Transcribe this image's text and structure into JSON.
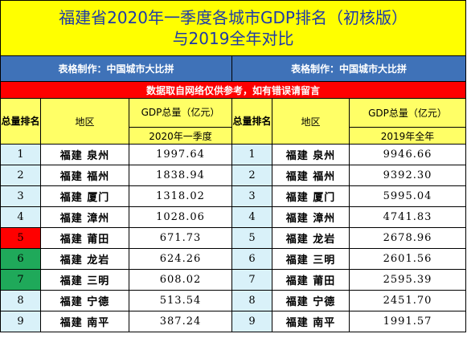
{
  "title": {
    "line1": "福建省2020年一季度各城市GDP排名（初核版）",
    "line2": "与2019全年对比"
  },
  "maker": {
    "left": "表格制作：中国城市大比拼",
    "right": "表格制作：中国城市大比拼"
  },
  "note": "数据取自网络仅供参考，如有错误请留言",
  "headers": {
    "rank": "总量排名",
    "region": "地区",
    "gdp_total": "GDP总量（亿元）",
    "gdp_total_right": "GDP总量（亿元）",
    "period_left": "2020年一季度",
    "period_right": "2019年全年"
  },
  "colors": {
    "title_bg": "#ffff00",
    "title_text": "#1e3aa8",
    "maker_bg": "#3f72b8",
    "note_bg": "#ff0000",
    "header_bg": "#ffff66",
    "rank_bg": "#d9f1f9",
    "rank_highlight_red": "#ff0000",
    "rank_highlight_green": "#1fa95a"
  },
  "rows": [
    {
      "rank": "1",
      "left_region": "福建 泉州",
      "left_value": "1997.64",
      "right_rank": "1",
      "right_region": "福建 泉州",
      "right_value": "9946.66",
      "rank_color": "normal"
    },
    {
      "rank": "2",
      "left_region": "福建 福州",
      "left_value": "1838.94",
      "right_rank": "2",
      "right_region": "福建 福州",
      "right_value": "9392.30",
      "rank_color": "normal"
    },
    {
      "rank": "3",
      "left_region": "福建 厦门",
      "left_value": "1318.02",
      "right_rank": "3",
      "right_region": "福建 厦门",
      "right_value": "5995.04",
      "rank_color": "normal"
    },
    {
      "rank": "4",
      "left_region": "福建 漳州",
      "left_value": "1028.06",
      "right_rank": "4",
      "right_region": "福建 漳州",
      "right_value": "4741.83",
      "rank_color": "normal"
    },
    {
      "rank": "5",
      "left_region": "福建 莆田",
      "left_value": "671.73",
      "right_rank": "5",
      "right_region": "福建 龙岩",
      "right_value": "2678.96",
      "rank_color": "red"
    },
    {
      "rank": "6",
      "left_region": "福建 龙岩",
      "left_value": "624.26",
      "right_rank": "6",
      "right_region": "福建 三明",
      "right_value": "2601.56",
      "rank_color": "green"
    },
    {
      "rank": "7",
      "left_region": "福建 三明",
      "left_value": "608.02",
      "right_rank": "7",
      "right_region": "福建 莆田",
      "right_value": "2595.39",
      "rank_color": "green"
    },
    {
      "rank": "8",
      "left_region": "福建 宁德",
      "left_value": "513.54",
      "right_rank": "8",
      "right_region": "福建 宁德",
      "right_value": "2451.70",
      "rank_color": "normal"
    },
    {
      "rank": "9",
      "left_region": "福建 南平",
      "left_value": "387.24",
      "right_rank": "9",
      "right_region": "福建 南平",
      "right_value": "1991.57",
      "rank_color": "normal"
    }
  ]
}
